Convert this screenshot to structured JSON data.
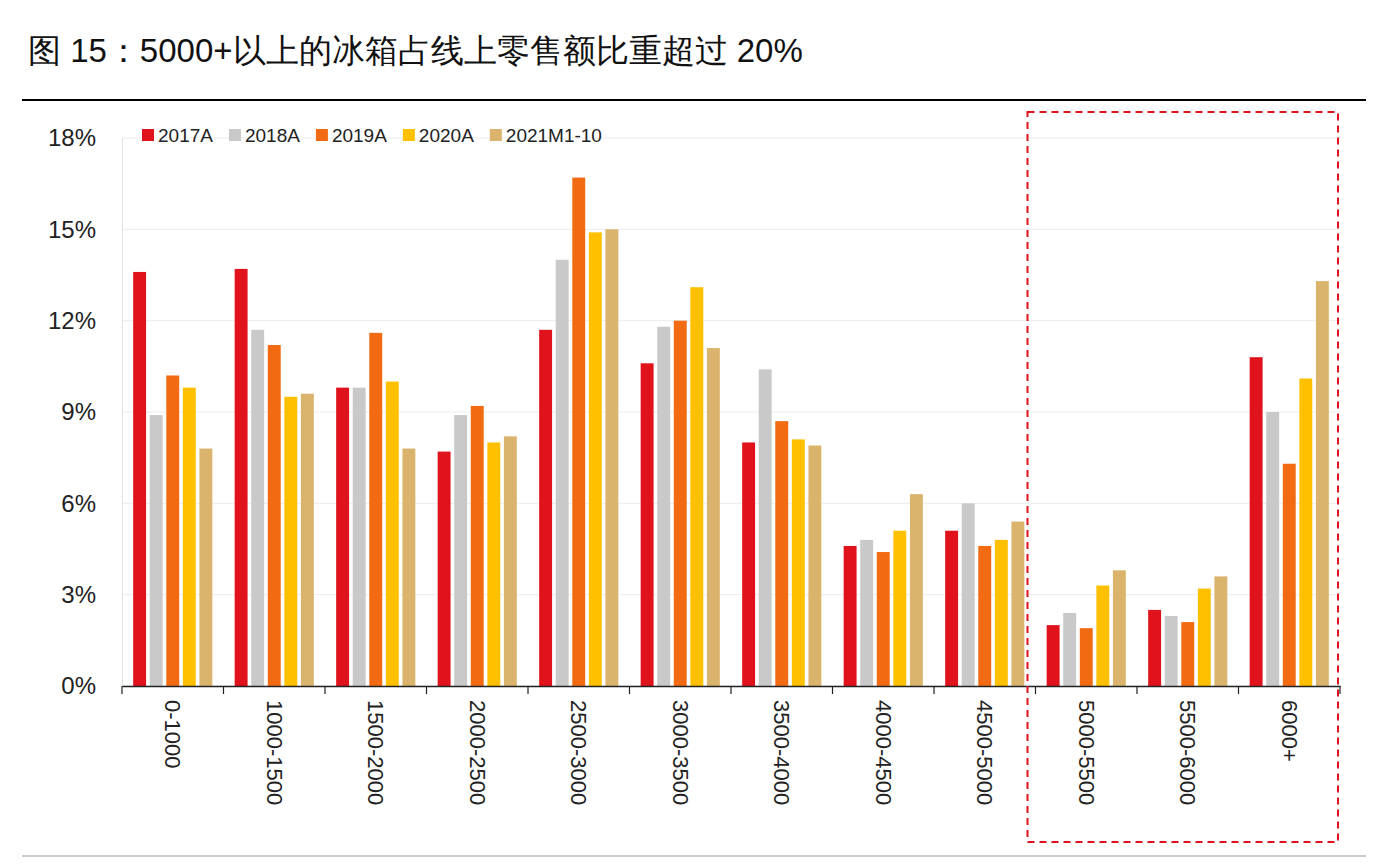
{
  "chart_data": {
    "type": "bar",
    "title": "图 15：5000+以上的冰箱占线上零售额比重超过 20%",
    "categories": [
      "0-1000",
      "1000-1500",
      "1500-2000",
      "2000-2500",
      "2500-3000",
      "3000-3500",
      "3500-4000",
      "4000-4500",
      "4500-5000",
      "5000-5500",
      "5500-6000",
      "6000+"
    ],
    "series": [
      {
        "name": "2017A",
        "color": "#e0121b",
        "values": [
          13.6,
          13.7,
          9.8,
          7.7,
          11.7,
          10.6,
          8.0,
          4.6,
          5.1,
          2.0,
          2.5,
          10.8
        ]
      },
      {
        "name": "2018A",
        "color": "#c9c9c9",
        "values": [
          8.9,
          11.7,
          9.8,
          8.9,
          14.0,
          11.8,
          10.4,
          4.8,
          6.0,
          2.4,
          2.3,
          9.0
        ]
      },
      {
        "name": "2019A",
        "color": "#f26b12",
        "values": [
          10.2,
          11.2,
          11.6,
          9.2,
          16.7,
          12.0,
          8.7,
          4.4,
          4.6,
          1.9,
          2.1,
          7.3
        ]
      },
      {
        "name": "2020A",
        "color": "#ffc000",
        "values": [
          9.8,
          9.5,
          10.0,
          8.0,
          14.9,
          13.1,
          8.1,
          5.1,
          4.8,
          3.3,
          3.2,
          10.1
        ]
      },
      {
        "name": "2021M1-10",
        "color": "#dab46c",
        "values": [
          7.8,
          9.6,
          7.8,
          8.2,
          15.0,
          11.1,
          7.9,
          6.3,
          5.4,
          3.8,
          3.6,
          13.3
        ]
      }
    ],
    "ylim": [
      0,
      18
    ],
    "yticks": [
      {
        "value": 0,
        "label": "0%"
      },
      {
        "value": 3,
        "label": "3%"
      },
      {
        "value": 6,
        "label": "6%"
      },
      {
        "value": 9,
        "label": "9%"
      },
      {
        "value": 12,
        "label": "12%"
      },
      {
        "value": 15,
        "label": "15%"
      },
      {
        "value": 18,
        "label": "18%"
      }
    ],
    "grid": true,
    "legend": "top-left"
  }
}
